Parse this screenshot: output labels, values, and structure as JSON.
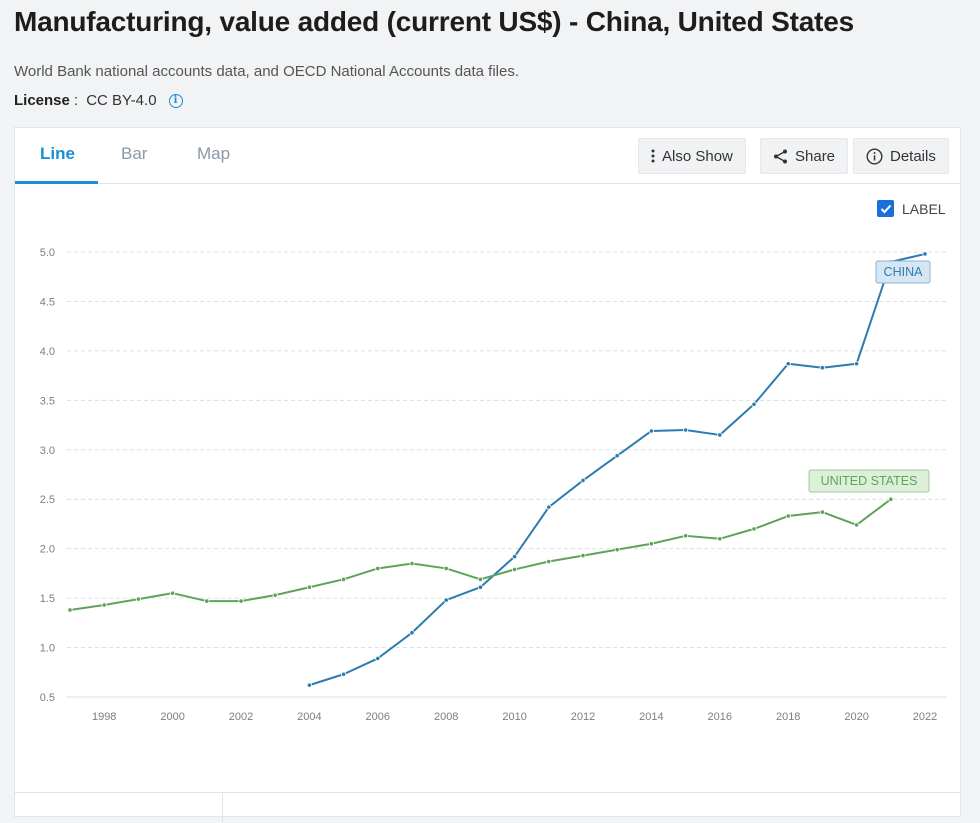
{
  "header": {
    "title": "Manufacturing, value added (current US$) - China, United States",
    "source": "World Bank national accounts data, and OECD National Accounts data files.",
    "license_label": "License",
    "license_sep": " : ",
    "license_value": "CC BY-4.0",
    "license_info_icon": "info-icon"
  },
  "tabs": [
    {
      "label": "Line",
      "active": true
    },
    {
      "label": "Bar",
      "active": false
    },
    {
      "label": "Map",
      "active": false
    }
  ],
  "toolbar": {
    "also_show": "Also Show",
    "share": "Share",
    "details": "Details"
  },
  "label_toggle": {
    "label": "LABEL",
    "checked": true
  },
  "colors": {
    "accent": "#1a8fd6",
    "china": "#2e7bb0",
    "us": "#5fa35a"
  },
  "chart_data": {
    "type": "line",
    "title": "",
    "xlabel": "",
    "ylabel": "",
    "ylim": [
      0.5,
      5.0
    ],
    "yticks": [
      "0.5",
      "1.0",
      "1.5",
      "2.0",
      "2.5",
      "3.0",
      "3.5",
      "4.0",
      "4.5",
      "5.0"
    ],
    "xlim": [
      1997,
      2022
    ],
    "xticks": [
      "1998",
      "2000",
      "2002",
      "2004",
      "2006",
      "2008",
      "2010",
      "2012",
      "2014",
      "2016",
      "2018",
      "2020",
      "2022"
    ],
    "grid": true,
    "series": [
      {
        "name": "CHINA",
        "color": "#2e7bb0",
        "label_bg": "#d6e6f3",
        "label_border": "#8ab4d6",
        "x": [
          2004,
          2005,
          2006,
          2007,
          2008,
          2009,
          2010,
          2011,
          2012,
          2013,
          2014,
          2015,
          2016,
          2017,
          2018,
          2019,
          2020,
          2021,
          2022
        ],
        "y": [
          0.62,
          0.73,
          0.89,
          1.15,
          1.48,
          1.61,
          1.92,
          2.42,
          2.69,
          2.94,
          3.19,
          3.2,
          3.15,
          3.46,
          3.87,
          3.83,
          3.87,
          4.9,
          4.98
        ]
      },
      {
        "name": "UNITED STATES",
        "color": "#5fa35a",
        "label_bg": "#dcefd9",
        "label_border": "#9fcb99",
        "x": [
          1997,
          1998,
          1999,
          2000,
          2001,
          2002,
          2003,
          2004,
          2005,
          2006,
          2007,
          2008,
          2009,
          2010,
          2011,
          2012,
          2013,
          2014,
          2015,
          2016,
          2017,
          2018,
          2019,
          2020,
          2021
        ],
        "y": [
          1.38,
          1.43,
          1.49,
          1.55,
          1.47,
          1.47,
          1.53,
          1.61,
          1.69,
          1.8,
          1.85,
          1.8,
          1.69,
          1.79,
          1.87,
          1.93,
          1.99,
          2.05,
          2.13,
          2.1,
          2.2,
          2.33,
          2.37,
          2.24,
          2.5
        ]
      }
    ]
  }
}
